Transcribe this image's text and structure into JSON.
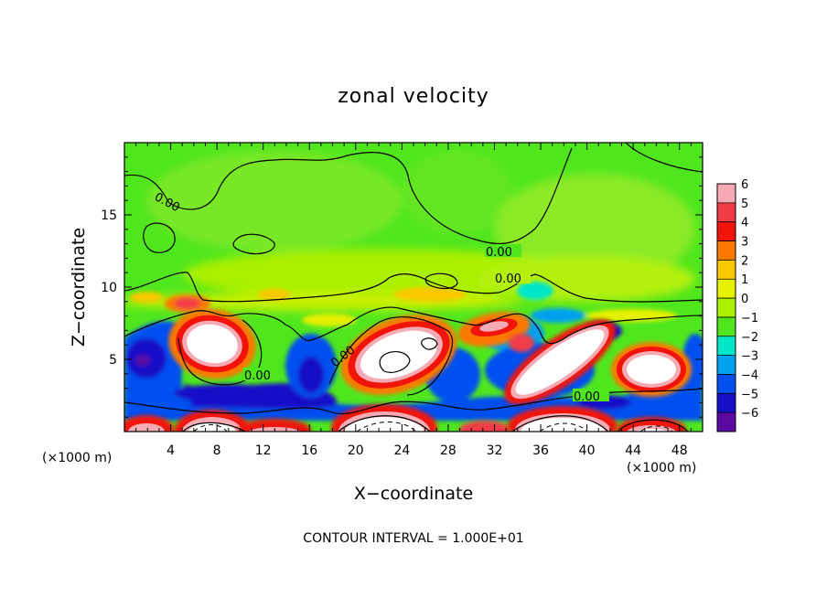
{
  "chart_data": {
    "type": "heatmap",
    "title": "zonal velocity",
    "xlabel": "X−coordinate",
    "ylabel": "Z−coordinate",
    "x_unit_note": "(×1000 m)",
    "y_unit_note": "(×1000 m)",
    "xlim": [
      0,
      50
    ],
    "ylim": [
      0,
      20
    ],
    "x_ticks": [
      4,
      8,
      12,
      16,
      20,
      24,
      28,
      32,
      36,
      40,
      44,
      48
    ],
    "y_ticks": [
      5,
      10,
      15
    ],
    "colorbar": {
      "ticks": [
        "6",
        "5",
        "4",
        "3",
        "2",
        "1",
        "0",
        "−1",
        "−2",
        "−3",
        "−4",
        "−5",
        "−6"
      ],
      "colors": [
        "#f5aab4",
        "#f03c46",
        "#f0140a",
        "#fa7800",
        "#fac800",
        "#e6f000",
        "#aaf000",
        "#50e61e",
        "#00e6c8",
        "#00a0f0",
        "#0050f0",
        "#1410c8",
        "#5a0aa0"
      ],
      "range": [
        -6,
        6
      ]
    },
    "contour_labels": [
      "0.00",
      "0.00",
      "0.00",
      "0.00",
      "0.00",
      "0.00"
    ],
    "note": "CONTOUR INTERVAL = 1.000E+01",
    "notable_features": [
      {
        "x": 8,
        "z": 5.5,
        "value": "strong positive (above 6)"
      },
      {
        "x": 24,
        "z": 5,
        "value": "strong positive (above 6)"
      },
      {
        "x": 38,
        "z": 5.5,
        "value": "strong positive (above 6)"
      },
      {
        "x": 46,
        "z": 4.5,
        "value": "strong positive (above 6)"
      },
      {
        "x": 2,
        "z": 5,
        "value": "strong negative (about -6)"
      },
      {
        "x": 6,
        "z": 9.2,
        "value": "about 4"
      },
      {
        "x": 33,
        "z": 7,
        "value": "about 3"
      },
      {
        "x": 25,
        "z": 15,
        "value": "about 0"
      }
    ]
  }
}
